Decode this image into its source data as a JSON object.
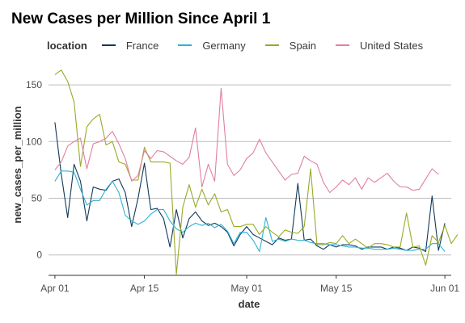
{
  "chart_data": {
    "type": "line",
    "title": "New Cases per Million Since April 1",
    "xlabel": "date",
    "ylabel": "new_cases_per_million",
    "legend_title": "location",
    "legend_position": "top",
    "grid": "horizontal major",
    "x_start": "2020-04-01",
    "x_ticks": [
      {
        "date": "2020-04-01",
        "label": "Apr 01"
      },
      {
        "date": "2020-04-15",
        "label": "Apr 15"
      },
      {
        "date": "2020-05-01",
        "label": "May 01"
      },
      {
        "date": "2020-05-15",
        "label": "May 15"
      },
      {
        "date": "2020-06-01",
        "label": "Jun 01"
      }
    ],
    "y_ticks": [
      0,
      50,
      100,
      150
    ],
    "xlim": [
      "2020-03-31",
      "2020-06-02"
    ],
    "ylim": [
      -18,
      165
    ],
    "series": [
      {
        "name": "France",
        "color": "#12395c",
        "values": [
          117,
          71,
          33,
          80,
          65,
          30,
          60,
          58,
          57,
          65,
          67,
          55,
          25,
          50,
          81,
          40,
          41,
          32,
          7,
          40,
          15,
          32,
          38,
          30,
          26,
          28,
          25,
          20,
          8,
          18,
          25,
          18,
          15,
          12,
          9,
          15,
          13,
          14,
          63,
          13,
          14,
          8,
          5,
          9,
          7,
          9,
          9,
          8,
          5,
          7,
          7,
          7,
          5,
          7,
          6,
          4,
          7,
          6,
          3,
          52,
          4,
          28
        ]
      },
      {
        "name": "Germany",
        "color": "#2ab2d8",
        "values": [
          65,
          74,
          74,
          73,
          58,
          44,
          48,
          48,
          58,
          65,
          55,
          35,
          30,
          27,
          30,
          36,
          40,
          40,
          30,
          23,
          20,
          25,
          28,
          26,
          28,
          24,
          27,
          21,
          10,
          20,
          20,
          13,
          3,
          33,
          12,
          14,
          12,
          14,
          13,
          13,
          11,
          10,
          10,
          9,
          9,
          8,
          7,
          7,
          6,
          6,
          5,
          5,
          5,
          6,
          5,
          4,
          4,
          5,
          5,
          10,
          10,
          3
        ]
      },
      {
        "name": "Spain",
        "color": "#9aaa28",
        "values": [
          159,
          163,
          153,
          135,
          78,
          113,
          120,
          124,
          97,
          100,
          82,
          80,
          66,
          66,
          95,
          82,
          82,
          82,
          81,
          -17,
          42,
          62,
          42,
          58,
          44,
          54,
          38,
          40,
          25,
          25,
          27,
          27,
          18,
          25,
          20,
          16,
          22,
          20,
          19,
          25,
          76,
          9,
          9,
          11,
          10,
          17,
          10,
          14,
          10,
          6,
          10,
          10,
          9,
          7,
          7,
          37,
          7,
          8,
          -9,
          17,
          11,
          26,
          10,
          18
        ]
      },
      {
        "name": "United States",
        "color": "#e07fa1",
        "values": [
          75,
          82,
          96,
          100,
          103,
          76,
          98,
          100,
          103,
          109,
          98,
          85,
          65,
          70,
          92,
          85,
          92,
          91,
          87,
          83,
          80,
          86,
          112,
          60,
          80,
          65,
          147,
          80,
          70,
          75,
          85,
          90,
          102,
          90,
          82,
          74,
          66,
          71,
          72,
          87,
          83,
          80,
          64,
          55,
          60,
          66,
          62,
          68,
          58,
          68,
          64,
          68,
          72,
          65,
          60,
          60,
          57,
          58,
          67,
          76,
          71
        ]
      }
    ]
  }
}
